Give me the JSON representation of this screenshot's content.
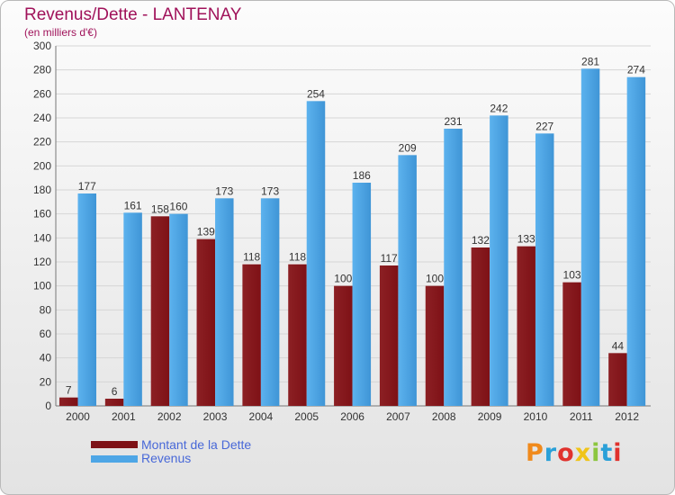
{
  "title": "Revenus/Dette - LANTENAY",
  "subtitle": "(en milliers d'€)",
  "logo_text": "Proxiti",
  "colors": {
    "debt": "#7e1116",
    "revenue": "#4ea6e6",
    "title": "#a0125a",
    "legend_text": "#4868d8"
  },
  "legend": [
    {
      "label": "Montant de la Dette",
      "color": "#7e1116"
    },
    {
      "label": "Revenus",
      "color": "#4ea6e6"
    }
  ],
  "chart_data": {
    "type": "bar",
    "categories": [
      "2000",
      "2001",
      "2002",
      "2003",
      "2004",
      "2005",
      "2006",
      "2007",
      "2008",
      "2009",
      "2010",
      "2011",
      "2012"
    ],
    "series": [
      {
        "name": "Montant de la Dette",
        "values": [
          7,
          6,
          158,
          139,
          118,
          118,
          100,
          117,
          100,
          132,
          133,
          103,
          44
        ]
      },
      {
        "name": "Revenus",
        "values": [
          177,
          161,
          160,
          173,
          173,
          254,
          186,
          209,
          231,
          242,
          227,
          281,
          274
        ]
      }
    ],
    "yticks": [
      0,
      20,
      40,
      60,
      80,
      100,
      120,
      140,
      160,
      180,
      200,
      220,
      240,
      260,
      280,
      300
    ],
    "ylim": [
      0,
      300
    ],
    "grid": true,
    "legend_position": "bottom-left"
  }
}
